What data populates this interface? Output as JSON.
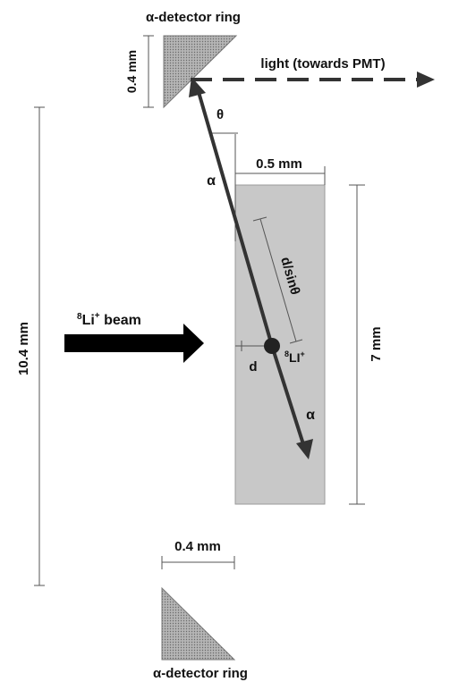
{
  "labels": {
    "detector_top": "α-detector ring",
    "detector_bottom": "α-detector ring",
    "light": "light (towards PMT)",
    "det_height": "0.4 mm",
    "det_width": "0.4 mm",
    "target_width": "0.5 mm",
    "target_height": "7 mm",
    "total_height": "10.4 mm",
    "beam_sup": "8",
    "beam_main": "Li",
    "beam_charge": "+",
    "beam_rest": " beam",
    "ion_sup": "8",
    "ion_main": "LI",
    "ion_charge": "+",
    "theta": "θ",
    "alpha_up": "α",
    "alpha_down": "α",
    "d": "d",
    "dsin": "d/sinθ"
  },
  "colors": {
    "target_fill": "#c8c8c8",
    "detector_fill": "#9a9a9a",
    "arrow": "#333333",
    "beam_arrow": "#000000"
  }
}
